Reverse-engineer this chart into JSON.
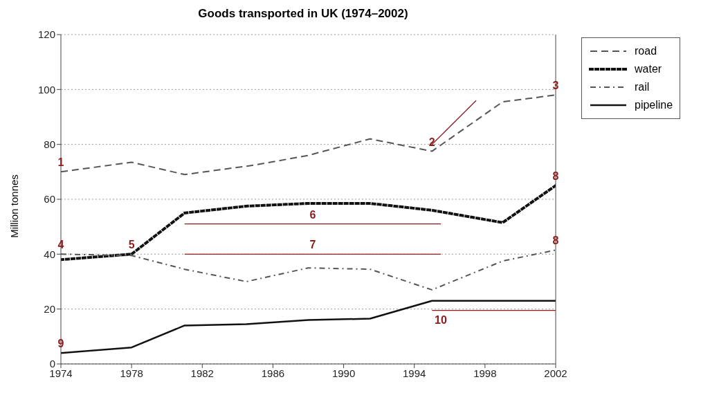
{
  "chart_data": {
    "type": "line",
    "title": "Goods transported in UK (1974–2002)",
    "ylabel": "Million tonnes",
    "xlim": [
      1974,
      2002
    ],
    "xticks": [
      1974,
      1978,
      1982,
      1986,
      1990,
      1994,
      1998,
      2002
    ],
    "ylim": [
      0,
      120
    ],
    "yticks": [
      0,
      20,
      40,
      60,
      80,
      100,
      120
    ],
    "grid": "y",
    "legend": "top right",
    "marker": "none",
    "series": [
      {
        "name": "road",
        "color": "#555555",
        "line_style": "dashed",
        "x": [
          1974,
          1978,
          1981,
          1985,
          1988,
          1991.5,
          1995,
          1999,
          2002
        ],
        "values": [
          70,
          73.5,
          69,
          72.5,
          76,
          82,
          77.5,
          95.5,
          98
        ]
      },
      {
        "name": "water",
        "color": "#111111",
        "line_style": "dotted",
        "x": [
          1974,
          1978,
          1981,
          1984.5,
          1988,
          1991.5,
          1995,
          1999,
          2002
        ],
        "values": [
          38,
          40,
          55,
          57.5,
          58.5,
          58.5,
          56,
          51.5,
          65
        ]
      },
      {
        "name": "rail",
        "color": "#555555",
        "line_style": "dashdot",
        "x": [
          1974,
          1978,
          1981,
          1984.5,
          1988,
          1991.5,
          1995,
          1999,
          2002
        ],
        "values": [
          40,
          39.5,
          34.5,
          30,
          35,
          34.5,
          27,
          37.5,
          41.5
        ]
      },
      {
        "name": "pipeline",
        "color": "#111111",
        "line_style": "solid",
        "x": [
          1974,
          1978,
          1981,
          1984.5,
          1988,
          1991.5,
          1995,
          2002
        ],
        "values": [
          4,
          6,
          14,
          14.5,
          16,
          16.5,
          23,
          23
        ]
      },
      {
        "color": "#8b1a1a",
        "line_style": "solid",
        "x": [
          1995,
          1997.5
        ],
        "values": [
          80,
          96
        ]
      },
      {
        "color": "#8b1a1a",
        "line_style": "solid",
        "x": [
          1981,
          1995.5
        ],
        "values": [
          51,
          51
        ]
      },
      {
        "color": "#8b1a1a",
        "line_style": "solid",
        "x": [
          1981,
          1995.5
        ],
        "values": [
          40,
          40
        ]
      },
      {
        "color": "#8b1a1a",
        "line_style": "solid",
        "x": [
          1995,
          2002
        ],
        "values": [
          19.5,
          19.5
        ]
      }
    ],
    "annotations": [
      {
        "text": "1",
        "x": 1974,
        "y": 70
      },
      {
        "text": "2",
        "x": 1995,
        "y": 77.5
      },
      {
        "text": "3",
        "x": 2002,
        "y": 98
      },
      {
        "text": "4",
        "x": 1974,
        "y": 40
      },
      {
        "text": "5",
        "x": 1978,
        "y": 40
      },
      {
        "text": "6",
        "x": 1988.25,
        "y": 51
      },
      {
        "text": "7",
        "x": 1988.25,
        "y": 40
      },
      {
        "text": "8",
        "x": 2002,
        "y": 65
      },
      {
        "text": "8",
        "x": 2002,
        "y": 41.5
      },
      {
        "text": "9",
        "x": 1974,
        "y": 4
      },
      {
        "text": "10",
        "x": 1995.5,
        "y": 19.5
      }
    ]
  }
}
